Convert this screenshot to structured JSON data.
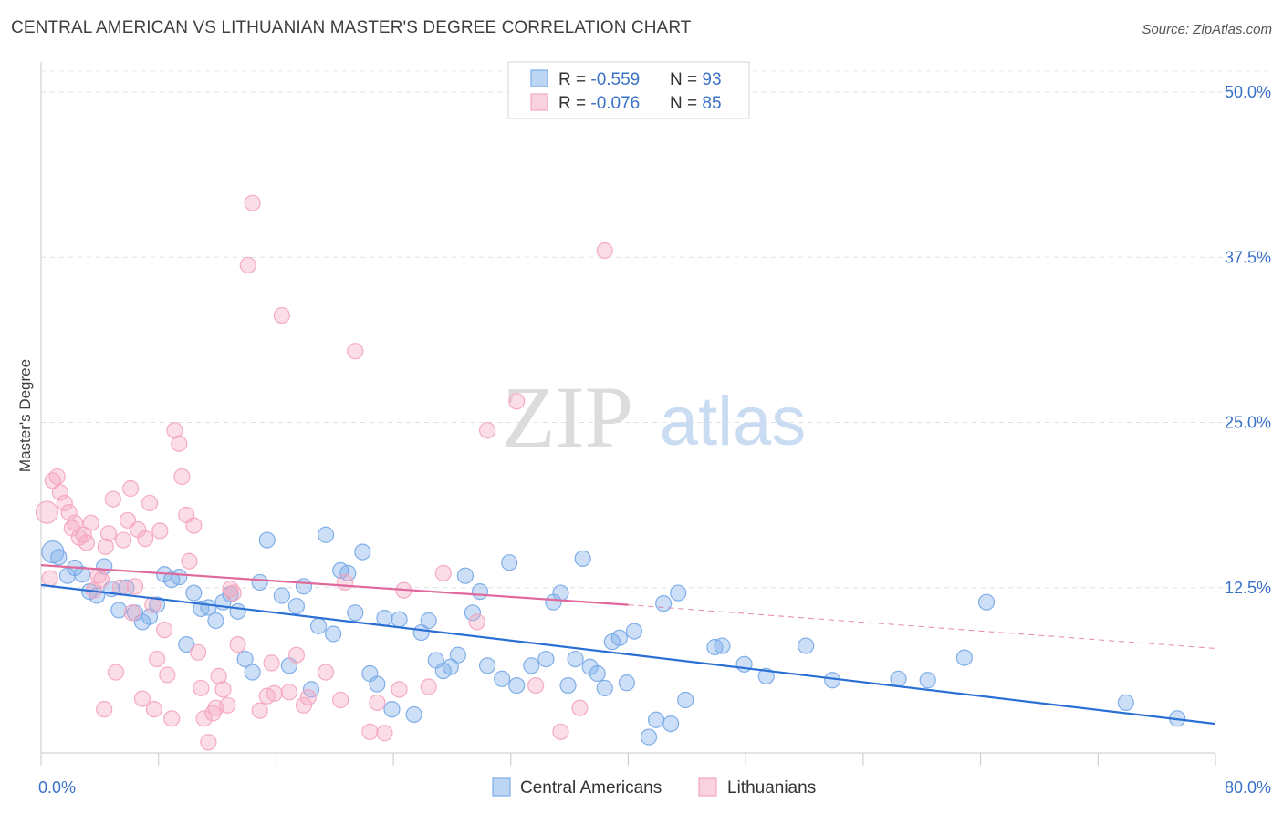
{
  "title": "CENTRAL AMERICAN VS LITHUANIAN MASTER'S DEGREE CORRELATION CHART",
  "source": "Source: ZipAtlas.com",
  "watermark": {
    "zip": "ZIP",
    "atlas": "atlas"
  },
  "legend_top": [
    {
      "r_label": "R = ",
      "r_value": "-0.559",
      "n_label": "N = ",
      "n_value": "93",
      "color": "#7aabe8"
    },
    {
      "r_label": "R = ",
      "r_value": "-0.076",
      "n_label": "N = ",
      "n_value": "85",
      "color": "#f4a6c0"
    }
  ],
  "chart_data": {
    "type": "scatter",
    "title": "CENTRAL AMERICAN VS LITHUANIAN MASTER'S DEGREE CORRELATION CHART",
    "ylabel": "Master's Degree",
    "xlabel": "",
    "xlim": [
      0,
      80
    ],
    "ylim": [
      0,
      52
    ],
    "x_tick_labels": [
      "0.0%",
      "80.0%"
    ],
    "y_ticks": [
      12.5,
      25.0,
      37.5,
      50.0
    ],
    "y_tick_labels": [
      "12.5%",
      "25.0%",
      "37.5%",
      "50.0%"
    ],
    "grid": true,
    "legend_position": "top-center",
    "series": [
      {
        "name": "Central Americans",
        "color": "#7aabe8",
        "line_color": "#2a6fd4",
        "trend": [
          [
            0,
            12.7
          ],
          [
            80,
            2.2
          ]
        ],
        "points": [
          [
            0.8,
            15.2
          ],
          [
            1.2,
            14.8
          ],
          [
            1.8,
            13.4
          ],
          [
            2.3,
            14.0
          ],
          [
            2.8,
            13.5
          ],
          [
            3.3,
            12.2
          ],
          [
            3.8,
            11.9
          ],
          [
            4.3,
            14.1
          ],
          [
            4.8,
            12.4
          ],
          [
            5.3,
            10.8
          ],
          [
            5.8,
            12.5
          ],
          [
            6.4,
            10.6
          ],
          [
            6.9,
            9.9
          ],
          [
            7.4,
            10.3
          ],
          [
            7.9,
            11.2
          ],
          [
            8.4,
            13.5
          ],
          [
            8.9,
            13.1
          ],
          [
            9.4,
            13.3
          ],
          [
            9.9,
            8.2
          ],
          [
            10.4,
            12.1
          ],
          [
            10.9,
            10.9
          ],
          [
            11.4,
            11.0
          ],
          [
            11.9,
            10.0
          ],
          [
            12.4,
            11.4
          ],
          [
            12.9,
            12.0
          ],
          [
            13.4,
            10.7
          ],
          [
            13.9,
            7.1
          ],
          [
            14.4,
            6.1
          ],
          [
            14.9,
            12.9
          ],
          [
            15.4,
            16.1
          ],
          [
            16.4,
            11.9
          ],
          [
            16.9,
            6.6
          ],
          [
            17.4,
            11.1
          ],
          [
            17.9,
            12.6
          ],
          [
            18.4,
            4.8
          ],
          [
            18.9,
            9.6
          ],
          [
            19.4,
            16.5
          ],
          [
            19.9,
            9.0
          ],
          [
            20.4,
            13.8
          ],
          [
            20.9,
            13.6
          ],
          [
            21.4,
            10.6
          ],
          [
            21.9,
            15.2
          ],
          [
            22.4,
            6.0
          ],
          [
            22.9,
            5.2
          ],
          [
            23.4,
            10.2
          ],
          [
            23.9,
            3.3
          ],
          [
            24.4,
            10.1
          ],
          [
            25.4,
            2.9
          ],
          [
            25.9,
            9.1
          ],
          [
            26.4,
            10.0
          ],
          [
            26.9,
            7.0
          ],
          [
            27.4,
            6.2
          ],
          [
            27.9,
            6.5
          ],
          [
            28.4,
            7.4
          ],
          [
            28.9,
            13.4
          ],
          [
            29.4,
            10.6
          ],
          [
            29.9,
            12.2
          ],
          [
            30.4,
            6.6
          ],
          [
            31.4,
            5.6
          ],
          [
            31.9,
            14.4
          ],
          [
            32.4,
            5.1
          ],
          [
            33.4,
            6.6
          ],
          [
            34.4,
            7.1
          ],
          [
            34.9,
            11.4
          ],
          [
            35.4,
            12.1
          ],
          [
            35.9,
            5.1
          ],
          [
            36.4,
            7.1
          ],
          [
            36.9,
            14.7
          ],
          [
            37.4,
            6.5
          ],
          [
            37.9,
            6.0
          ],
          [
            38.4,
            4.9
          ],
          [
            38.9,
            8.4
          ],
          [
            39.4,
            8.7
          ],
          [
            39.9,
            5.3
          ],
          [
            40.4,
            9.2
          ],
          [
            41.4,
            1.2
          ],
          [
            41.9,
            2.5
          ],
          [
            42.4,
            11.3
          ],
          [
            42.9,
            2.2
          ],
          [
            43.4,
            12.1
          ],
          [
            43.9,
            4.0
          ],
          [
            45.9,
            8.0
          ],
          [
            46.4,
            8.1
          ],
          [
            47.9,
            6.7
          ],
          [
            49.4,
            5.8
          ],
          [
            52.1,
            8.1
          ],
          [
            53.9,
            5.5
          ],
          [
            58.4,
            5.6
          ],
          [
            60.4,
            5.5
          ],
          [
            62.9,
            7.2
          ],
          [
            64.4,
            11.4
          ],
          [
            73.9,
            3.8
          ],
          [
            77.4,
            2.6
          ]
        ]
      },
      {
        "name": "Lithuanians",
        "color": "#f4a6c0",
        "line_color": "#e0689a",
        "trend": [
          [
            0,
            14.2
          ],
          [
            40,
            11.2
          ]
        ],
        "trend_dashed": [
          [
            40,
            11.2
          ],
          [
            80,
            7.9
          ]
        ],
        "points": [
          [
            0.4,
            18.2
          ],
          [
            0.6,
            13.2
          ],
          [
            0.8,
            20.6
          ],
          [
            1.1,
            20.9
          ],
          [
            1.3,
            19.7
          ],
          [
            1.6,
            18.9
          ],
          [
            1.9,
            18.2
          ],
          [
            2.1,
            17.0
          ],
          [
            2.3,
            17.4
          ],
          [
            2.6,
            16.3
          ],
          [
            2.9,
            16.5
          ],
          [
            3.1,
            15.9
          ],
          [
            3.4,
            17.4
          ],
          [
            3.6,
            12.3
          ],
          [
            3.9,
            13.4
          ],
          [
            4.1,
            13.1
          ],
          [
            4.4,
            15.6
          ],
          [
            4.6,
            16.6
          ],
          [
            4.9,
            19.2
          ],
          [
            5.1,
            6.1
          ],
          [
            5.4,
            12.5
          ],
          [
            5.6,
            16.1
          ],
          [
            5.9,
            17.6
          ],
          [
            6.1,
            20.0
          ],
          [
            6.4,
            12.6
          ],
          [
            6.6,
            16.9
          ],
          [
            6.9,
            4.1
          ],
          [
            7.1,
            16.2
          ],
          [
            7.4,
            18.9
          ],
          [
            7.6,
            11.2
          ],
          [
            7.9,
            7.1
          ],
          [
            8.1,
            16.8
          ],
          [
            8.4,
            9.3
          ],
          [
            8.6,
            5.9
          ],
          [
            8.9,
            2.6
          ],
          [
            9.1,
            24.4
          ],
          [
            9.4,
            23.4
          ],
          [
            9.6,
            20.9
          ],
          [
            9.9,
            18.0
          ],
          [
            10.1,
            14.5
          ],
          [
            10.4,
            17.2
          ],
          [
            10.9,
            4.9
          ],
          [
            11.1,
            2.6
          ],
          [
            11.4,
            0.8
          ],
          [
            11.9,
            3.4
          ],
          [
            12.1,
            5.8
          ],
          [
            12.4,
            4.8
          ],
          [
            12.9,
            12.4
          ],
          [
            13.1,
            12.1
          ],
          [
            13.4,
            8.2
          ],
          [
            14.1,
            36.9
          ],
          [
            14.4,
            41.6
          ],
          [
            14.9,
            3.2
          ],
          [
            15.4,
            4.3
          ],
          [
            15.9,
            4.5
          ],
          [
            16.4,
            33.1
          ],
          [
            16.9,
            4.6
          ],
          [
            17.4,
            7.4
          ],
          [
            17.9,
            3.6
          ],
          [
            19.4,
            6.1
          ],
          [
            20.4,
            4.0
          ],
          [
            21.4,
            30.4
          ],
          [
            22.4,
            1.6
          ],
          [
            22.9,
            3.8
          ],
          [
            23.4,
            1.5
          ],
          [
            24.4,
            4.8
          ],
          [
            26.4,
            5.0
          ],
          [
            27.4,
            13.6
          ],
          [
            30.4,
            24.4
          ],
          [
            32.4,
            26.6
          ],
          [
            35.4,
            1.6
          ],
          [
            38.4,
            38.0
          ],
          [
            4.3,
            3.3
          ],
          [
            6.2,
            10.6
          ],
          [
            7.7,
            3.3
          ],
          [
            10.7,
            7.6
          ],
          [
            11.7,
            3.0
          ],
          [
            12.7,
            3.6
          ],
          [
            15.7,
            6.8
          ],
          [
            18.2,
            4.2
          ],
          [
            20.7,
            12.9
          ],
          [
            24.7,
            12.3
          ],
          [
            29.7,
            9.9
          ],
          [
            33.7,
            5.1
          ],
          [
            36.7,
            3.4
          ]
        ]
      }
    ]
  },
  "legend_bottom": [
    {
      "label": "Central Americans",
      "color": "#7aabe8"
    },
    {
      "label": "Lithuanians",
      "color": "#f4a6c0"
    }
  ]
}
